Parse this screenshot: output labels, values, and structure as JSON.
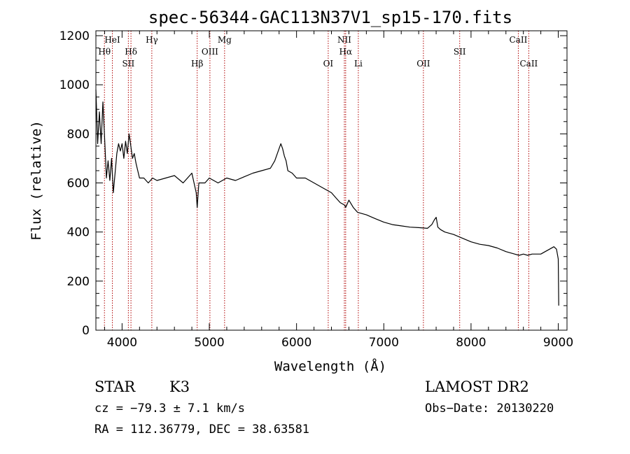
{
  "chart_data": {
    "type": "line",
    "title": "spec-56344-GAC113N37V1_sp15-170.fits",
    "xlabel": "Wavelength (Å)",
    "ylabel": "Flux (relative)",
    "xlim": [
      3700,
      9100
    ],
    "ylim": [
      0,
      1220
    ],
    "x_ticks": [
      4000,
      5000,
      6000,
      7000,
      8000,
      9000
    ],
    "y_ticks": [
      0,
      200,
      400,
      600,
      800,
      1000,
      1200
    ],
    "line_color": "#000000",
    "marker_color": "#b00000",
    "grid": false,
    "series": [
      {
        "x": [
          3700,
          3720,
          3740,
          3760,
          3780,
          3800,
          3820,
          3840,
          3860,
          3880,
          3900,
          3920,
          3940,
          3960,
          3980,
          4000,
          4020,
          4040,
          4060,
          4080,
          4100,
          4120,
          4140,
          4160,
          4180,
          4200,
          4250,
          4300,
          4350,
          4400,
          4500,
          4600,
          4700,
          4800,
          4850,
          4861,
          4880,
          4950,
          5000,
          5100,
          5200,
          5300,
          5400,
          5500,
          5600,
          5700,
          5750,
          5800,
          5820,
          5840,
          5860,
          5880,
          5900,
          5950,
          6000,
          6100,
          6200,
          6300,
          6400,
          6450,
          6500,
          6550,
          6563,
          6600,
          6650,
          6700,
          6800,
          6900,
          7000,
          7100,
          7200,
          7300,
          7400,
          7500,
          7550,
          7580,
          7600,
          7620,
          7650,
          7700,
          7800,
          7900,
          8000,
          8100,
          8200,
          8300,
          8400,
          8500,
          8550,
          8600,
          8650,
          8700,
          8750,
          8800,
          8850,
          8900,
          8950,
          8980,
          9000,
          9005
        ],
        "y": [
          980,
          760,
          890,
          760,
          930,
          780,
          620,
          690,
          610,
          700,
          560,
          640,
          720,
          760,
          730,
          760,
          700,
          770,
          720,
          800,
          750,
          700,
          720,
          680,
          650,
          620,
          620,
          600,
          620,
          610,
          620,
          630,
          600,
          640,
          560,
          500,
          600,
          600,
          620,
          600,
          620,
          610,
          625,
          640,
          650,
          660,
          690,
          740,
          760,
          740,
          710,
          690,
          650,
          640,
          620,
          620,
          600,
          580,
          560,
          540,
          520,
          510,
          500,
          530,
          500,
          480,
          470,
          455,
          440,
          430,
          425,
          420,
          418,
          415,
          430,
          450,
          460,
          420,
          410,
          400,
          390,
          375,
          360,
          350,
          345,
          335,
          320,
          310,
          305,
          310,
          305,
          310,
          310,
          310,
          320,
          330,
          340,
          330,
          290,
          100
        ]
      }
    ],
    "lines": [
      {
        "name": "Hθ",
        "wl": 3798,
        "row": 2
      },
      {
        "name": "HeI",
        "wl": 3889,
        "row": 1
      },
      {
        "name": "SII",
        "wl": 4072,
        "row": 3
      },
      {
        "name": "Hδ",
        "wl": 4102,
        "row": 2
      },
      {
        "name": "Hγ",
        "wl": 4341,
        "row": 1
      },
      {
        "name": "Hβ",
        "wl": 4861,
        "row": 3
      },
      {
        "name": "OIII",
        "wl": 5007,
        "row": 2
      },
      {
        "name": "Mg",
        "wl": 5175,
        "row": 1
      },
      {
        "name": "OI",
        "wl": 6363,
        "row": 3
      },
      {
        "name": "NII",
        "wl": 6548,
        "row": 1
      },
      {
        "name": "Hα",
        "wl": 6563,
        "row": 2
      },
      {
        "name": "Li",
        "wl": 6708,
        "row": 3
      },
      {
        "name": "OII",
        "wl": 7454,
        "row": 3
      },
      {
        "name": "SII",
        "wl": 7870,
        "row": 2
      },
      {
        "name": "CaII",
        "wl": 8542,
        "row": 1
      },
      {
        "name": "CaII",
        "wl": 8662,
        "row": 3
      }
    ]
  },
  "info": {
    "object_class": "STAR",
    "subclass": "K3",
    "survey": "LAMOST DR2",
    "cz": "cz = −79.3 ± 7.1 km/s",
    "obs_date": "Obs−Date: 20130220",
    "coords": "RA = 112.36779, DEC =  38.63581"
  }
}
